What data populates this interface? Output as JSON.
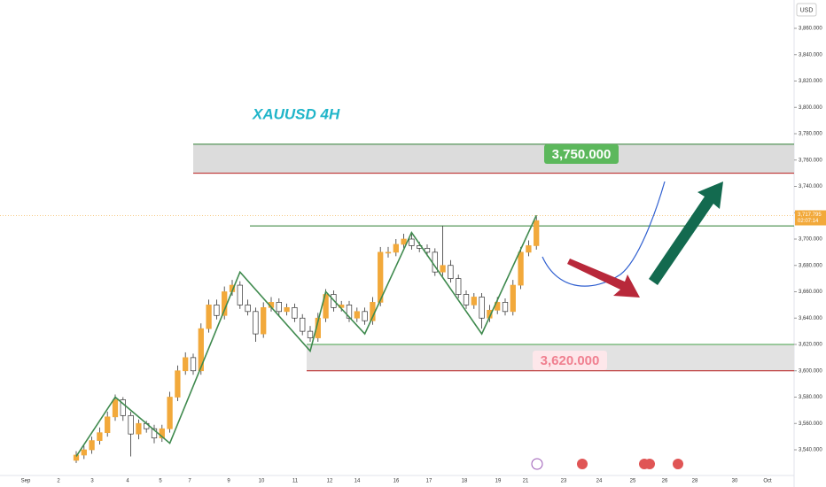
{
  "chart_data": {
    "type": "candlestick",
    "title": "XAUUSD 4H",
    "currency": "USD",
    "ylim": [
      3520,
      3880
    ],
    "yticks": [
      {
        "value": 3540,
        "label": "3,540.000"
      },
      {
        "value": 3560,
        "label": "3,560.000"
      },
      {
        "value": 3580,
        "label": "3,580.000"
      },
      {
        "value": 3600,
        "label": "3,600.000"
      },
      {
        "value": 3620,
        "label": "3,620.000"
      },
      {
        "value": 3640,
        "label": "3,640.000"
      },
      {
        "value": 3660,
        "label": "3,660.000"
      },
      {
        "value": 3680,
        "label": "3,680.000"
      },
      {
        "value": 3700,
        "label": "3,700.000"
      },
      {
        "value": 3720,
        "label": "3,720.000"
      },
      {
        "value": 3740,
        "label": "3,740.000"
      },
      {
        "value": 3760,
        "label": "3,760.000"
      },
      {
        "value": 3780,
        "label": "3,780.000"
      },
      {
        "value": 3800,
        "label": "3,800.000"
      },
      {
        "value": 3820,
        "label": "3,820.000"
      },
      {
        "value": 3840,
        "label": "3,840.000"
      },
      {
        "value": 3860,
        "label": "3,860.000"
      }
    ],
    "x_labels": [
      "Sep",
      "2",
      "3",
      "4",
      "5",
      "7",
      "9",
      "10",
      "11",
      "12",
      "14",
      "16",
      "17",
      "18",
      "19",
      "21",
      "23",
      "24",
      "25",
      "26",
      "28",
      "30",
      "Oct"
    ],
    "up_color": "#f2a93b",
    "down_color": "#ffffff",
    "open": [
      3532,
      3536,
      3540,
      3547,
      3553,
      3565,
      3578,
      3566,
      3552,
      3560,
      3556,
      3549,
      3556,
      3580,
      3600,
      3610,
      3600,
      3632,
      3650,
      3642,
      3660,
      3665,
      3650,
      3645,
      3628,
      3648,
      3652,
      3645,
      3648,
      3640,
      3630,
      3625,
      3640,
      3658,
      3648,
      3650,
      3640,
      3645,
      3638,
      3652,
      3690,
      3690,
      3696,
      3700,
      3695,
      3693,
      3690,
      3675,
      3680,
      3670,
      3658,
      3650,
      3656,
      3640,
      3646,
      3652,
      3645,
      3665,
      3690,
      3695
    ],
    "high": [
      3539,
      3543,
      3550,
      3557,
      3569,
      3582,
      3580,
      3569,
      3563,
      3562,
      3559,
      3559,
      3584,
      3604,
      3614,
      3613,
      3636,
      3654,
      3654,
      3664,
      3669,
      3668,
      3654,
      3648,
      3652,
      3656,
      3655,
      3651,
      3651,
      3643,
      3634,
      3644,
      3662,
      3661,
      3653,
      3653,
      3648,
      3648,
      3656,
      3694,
      3694,
      3700,
      3704,
      3704,
      3698,
      3696,
      3693,
      3710,
      3684,
      3673,
      3661,
      3659,
      3659,
      3650,
      3656,
      3655,
      3669,
      3694,
      3699,
      3718
    ],
    "low": [
      3530,
      3533,
      3537,
      3544,
      3550,
      3562,
      3562,
      3535,
      3548,
      3553,
      3545,
      3546,
      3553,
      3577,
      3597,
      3597,
      3597,
      3629,
      3639,
      3639,
      3657,
      3647,
      3642,
      3622,
      3625,
      3645,
      3642,
      3642,
      3637,
      3627,
      3622,
      3622,
      3637,
      3645,
      3645,
      3637,
      3637,
      3635,
      3635,
      3649,
      3686,
      3687,
      3693,
      3692,
      3690,
      3687,
      3672,
      3672,
      3667,
      3655,
      3647,
      3647,
      3632,
      3637,
      3643,
      3642,
      3642,
      3662,
      3687,
      3692
    ],
    "close": [
      3536,
      3540,
      3547,
      3553,
      3565,
      3578,
      3566,
      3552,
      3560,
      3556,
      3549,
      3556,
      3580,
      3600,
      3610,
      3600,
      3632,
      3650,
      3642,
      3660,
      3665,
      3650,
      3645,
      3628,
      3648,
      3652,
      3645,
      3648,
      3640,
      3630,
      3625,
      3640,
      3658,
      3648,
      3650,
      3640,
      3645,
      3638,
      3652,
      3690,
      3690,
      3696,
      3700,
      3695,
      3693,
      3690,
      3675,
      3680,
      3670,
      3658,
      3650,
      3656,
      3640,
      3646,
      3652,
      3645,
      3665,
      3690,
      3695,
      3714
    ],
    "zigzag": {
      "x": [
        0,
        5,
        12,
        21,
        30,
        32,
        37,
        43,
        52,
        59
      ],
      "values": [
        3535,
        3580,
        3545,
        3675,
        3615,
        3660,
        3628,
        3705,
        3628,
        3718
      ],
      "color": "#3f8a4e"
    },
    "upper_zone": {
      "low": 3750,
      "high": 3772,
      "label": "3,750.000"
    },
    "lower_zone": {
      "low": 3600,
      "high": 3620,
      "label": "3,620.000"
    },
    "resistance": 3710,
    "last_price": {
      "value": 3717.795,
      "label": "3,717.795",
      "countdown": "02:07:14"
    }
  }
}
